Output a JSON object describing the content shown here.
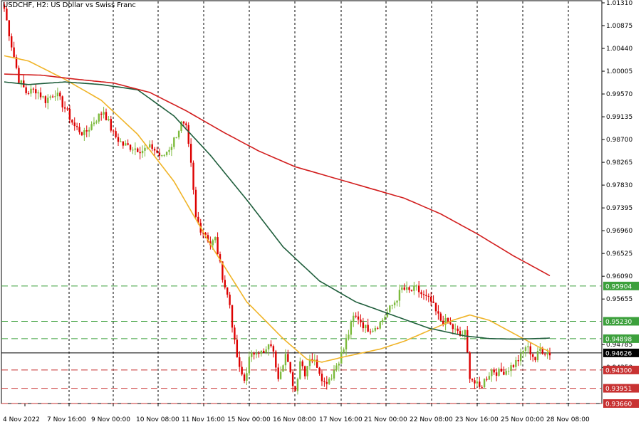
{
  "title": "USDCHF, H2:  US Dollar vs Swiss Franc",
  "colors": {
    "bull": "#7cba3c",
    "bear": "#dd0000",
    "ma_fast": "#f0b428",
    "ma_mid": "#1f5e3c",
    "ma_slow": "#d21e1e",
    "level_green": "#3ca03c",
    "level_red": "#c83232",
    "current": "#000000",
    "grid": "#000000"
  },
  "chart_data": {
    "type": "candlestick",
    "symbol": "USDCHF",
    "timeframe": "H2",
    "ylim": [
      0.9366,
      1.0131
    ],
    "y_ticks": [
      "1.01310",
      "1.00875",
      "1.00440",
      "1.00005",
      "0.99570",
      "0.99135",
      "0.98700",
      "0.98265",
      "0.97830",
      "0.97395",
      "0.96960",
      "0.96525",
      "0.96090",
      "0.95655",
      "0.94785",
      "0.94350"
    ],
    "x_ticks": [
      "4 Nov 2022",
      "7 Nov 16:00",
      "9 Nov 00:00",
      "10 Nov 08:00",
      "11 Nov 16:00",
      "15 Nov 00:00",
      "16 Nov 08:00",
      "17 Nov 16:00",
      "21 Nov 00:00",
      "22 Nov 08:00",
      "23 Nov 16:00",
      "25 Nov 00:00",
      "28 Nov 08:00"
    ],
    "grid": "vertical dashed",
    "horizontal_levels": [
      {
        "label": "0.95904",
        "value": 0.95904,
        "style": "green-dashed"
      },
      {
        "label": "0.95230",
        "value": 0.9523,
        "style": "green-dashed"
      },
      {
        "label": "0.94898",
        "value": 0.94898,
        "style": "green-dashed"
      },
      {
        "label": "0.94300",
        "value": 0.943,
        "style": "red-dashed"
      },
      {
        "label": "0.93951",
        "value": 0.93951,
        "style": "red-dashed"
      },
      {
        "label": "0.93660",
        "value": 0.9366,
        "style": "red-dashed"
      }
    ],
    "current_price": {
      "label": "0.94626",
      "value": 0.94626
    },
    "close_path": [
      [
        0,
        1.012
      ],
      [
        3,
        1.005
      ],
      [
        6,
        0.9985
      ],
      [
        9,
        0.996
      ],
      [
        13,
        0.9965
      ],
      [
        17,
        0.9945
      ],
      [
        21,
        0.996
      ],
      [
        25,
        0.993
      ],
      [
        29,
        0.9895
      ],
      [
        33,
        0.988
      ],
      [
        37,
        0.9905
      ],
      [
        41,
        0.9925
      ],
      [
        45,
        0.988
      ],
      [
        49,
        0.986
      ],
      [
        53,
        0.9855
      ],
      [
        57,
        0.985
      ],
      [
        61,
        0.9855
      ],
      [
        65,
        0.9835
      ],
      [
        69,
        0.986
      ],
      [
        73,
        0.99
      ],
      [
        75,
        0.989
      ],
      [
        77,
        0.982
      ],
      [
        79,
        0.972
      ],
      [
        81,
        0.97
      ],
      [
        83,
        0.969
      ],
      [
        85,
        0.967
      ],
      [
        87,
        0.968
      ],
      [
        89,
        0.963
      ],
      [
        91,
        0.959
      ],
      [
        93,
        0.9555
      ],
      [
        95,
        0.948
      ],
      [
        97,
        0.943
      ],
      [
        99,
        0.941
      ],
      [
        101,
        0.945
      ],
      [
        104,
        0.947
      ],
      [
        107,
        0.946
      ],
      [
        110,
        0.948
      ],
      [
        113,
        0.942
      ],
      [
        116,
        0.946
      ],
      [
        118,
        0.942
      ],
      [
        120,
        0.939
      ],
      [
        122,
        0.945
      ],
      [
        124,
        0.9425
      ],
      [
        126,
        0.9455
      ],
      [
        129,
        0.944
      ],
      [
        132,
        0.9405
      ],
      [
        135,
        0.942
      ],
      [
        138,
        0.945
      ],
      [
        140,
        0.947
      ],
      [
        142,
        0.95
      ],
      [
        144,
        0.953
      ],
      [
        146,
        0.953
      ],
      [
        149,
        0.951
      ],
      [
        152,
        0.951
      ],
      [
        155,
        0.952
      ],
      [
        158,
        0.954
      ],
      [
        161,
        0.956
      ],
      [
        164,
        0.9585
      ],
      [
        167,
        0.958
      ],
      [
        170,
        0.9585
      ],
      [
        173,
        0.957
      ],
      [
        176,
        0.956
      ],
      [
        178,
        0.954
      ],
      [
        180,
        0.9525
      ],
      [
        183,
        0.952
      ],
      [
        186,
        0.9505
      ],
      [
        188,
        0.9495
      ],
      [
        190,
        0.95
      ],
      [
        192,
        0.942
      ],
      [
        194,
        0.9405
      ],
      [
        196,
        0.9395
      ],
      [
        198,
        0.941
      ],
      [
        201,
        0.943
      ],
      [
        204,
        0.9425
      ],
      [
        207,
        0.943
      ],
      [
        210,
        0.944
      ],
      [
        213,
        0.9455
      ],
      [
        215,
        0.9475
      ],
      [
        217,
        0.9465
      ],
      [
        219,
        0.945
      ],
      [
        221,
        0.947
      ],
      [
        223,
        0.9465
      ],
      [
        225,
        0.9462
      ]
    ],
    "moving_averages": [
      {
        "color_key": "ma_fast",
        "points": [
          [
            0,
            1.003
          ],
          [
            10,
            1.002
          ],
          [
            25,
            0.9985
          ],
          [
            40,
            0.9945
          ],
          [
            55,
            0.988
          ],
          [
            70,
            0.979
          ],
          [
            85,
            0.967
          ],
          [
            100,
            0.956
          ],
          [
            115,
            0.949
          ],
          [
            125,
            0.945
          ],
          [
            131,
            0.9445
          ],
          [
            140,
            0.9455
          ],
          [
            155,
            0.947
          ],
          [
            165,
            0.9485
          ],
          [
            175,
            0.9505
          ],
          [
            185,
            0.9525
          ],
          [
            192,
            0.9535
          ],
          [
            200,
            0.9525
          ],
          [
            210,
            0.95
          ],
          [
            220,
            0.9475
          ],
          [
            225,
            0.9465
          ]
        ]
      },
      {
        "color_key": "ma_mid",
        "points": [
          [
            0,
            0.998
          ],
          [
            10,
            0.9975
          ],
          [
            25,
            0.998
          ],
          [
            40,
            0.9975
          ],
          [
            55,
            0.9965
          ],
          [
            70,
            0.9915
          ],
          [
            85,
            0.984
          ],
          [
            100,
            0.9755
          ],
          [
            115,
            0.9665
          ],
          [
            130,
            0.96
          ],
          [
            145,
            0.956
          ],
          [
            160,
            0.9535
          ],
          [
            175,
            0.951
          ],
          [
            190,
            0.9495
          ],
          [
            200,
            0.949
          ],
          [
            210,
            0.9489
          ],
          [
            220,
            0.949
          ],
          [
            225,
            0.9491
          ]
        ]
      },
      {
        "color_key": "ma_slow",
        "points": [
          [
            0,
            0.9995
          ],
          [
            15,
            0.9993
          ],
          [
            30,
            0.9985
          ],
          [
            45,
            0.9978
          ],
          [
            60,
            0.996
          ],
          [
            75,
            0.9925
          ],
          [
            90,
            0.9885
          ],
          [
            105,
            0.9848
          ],
          [
            120,
            0.9818
          ],
          [
            135,
            0.9798
          ],
          [
            150,
            0.9778
          ],
          [
            165,
            0.9758
          ],
          [
            180,
            0.9728
          ],
          [
            195,
            0.969
          ],
          [
            210,
            0.9648
          ],
          [
            225,
            0.961
          ]
        ]
      }
    ]
  }
}
